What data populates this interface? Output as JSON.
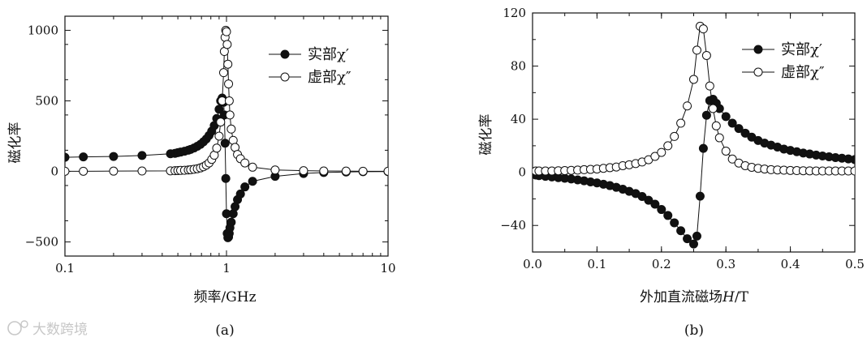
{
  "watermark": "大数跨境",
  "chart_data": [
    {
      "type": "line",
      "panel_label": "(a)",
      "xlabel": "频率/GHz",
      "ylabel": "磁化率",
      "xscale": "log",
      "xlim": [
        0.1,
        10
      ],
      "ylim": [
        -600,
        1100
      ],
      "xticks": [
        0.1,
        1,
        10
      ],
      "xtick_labels": [
        "0.1",
        "1",
        "10"
      ],
      "yticks": [
        -500,
        0,
        500,
        1000
      ],
      "ytick_labels": [
        "−500",
        "0",
        "500",
        "1000"
      ],
      "legend_position": "top-right",
      "series": [
        {
          "name": "实部χ′",
          "marker": "filled-circle",
          "x": [
            0.1,
            0.13,
            0.2,
            0.3,
            0.45,
            0.48,
            0.5,
            0.52,
            0.55,
            0.58,
            0.6,
            0.63,
            0.66,
            0.69,
            0.72,
            0.75,
            0.78,
            0.81,
            0.84,
            0.87,
            0.9,
            0.92,
            0.94,
            0.96,
            0.97,
            0.98,
            0.99,
            1.0,
            1.01,
            1.02,
            1.03,
            1.04,
            1.05,
            1.07,
            1.1,
            1.13,
            1.17,
            1.22,
            1.3,
            1.45,
            2,
            3,
            4,
            5.5,
            7,
            10
          ],
          "y": [
            100,
            103,
            106,
            113,
            125,
            128,
            133,
            137,
            143,
            150,
            156,
            166,
            178,
            192,
            210,
            230,
            255,
            285,
            325,
            375,
            440,
            500,
            520,
            490,
            400,
            200,
            -50,
            -300,
            -440,
            -470,
            -465,
            -440,
            -400,
            -360,
            -300,
            -250,
            -200,
            -160,
            -110,
            -70,
            -35,
            -15,
            -8,
            -4,
            -2,
            -1
          ]
        },
        {
          "name": "虚部χ″",
          "marker": "open-circle",
          "x": [
            0.1,
            0.13,
            0.2,
            0.3,
            0.45,
            0.48,
            0.5,
            0.52,
            0.55,
            0.58,
            0.6,
            0.63,
            0.66,
            0.69,
            0.72,
            0.75,
            0.78,
            0.81,
            0.84,
            0.87,
            0.9,
            0.92,
            0.94,
            0.96,
            0.97,
            0.98,
            0.99,
            1.0,
            1.01,
            1.02,
            1.03,
            1.04,
            1.05,
            1.07,
            1.1,
            1.13,
            1.17,
            1.22,
            1.3,
            1.45,
            2,
            3,
            4,
            5.5,
            7,
            10
          ],
          "y": [
            1,
            1,
            2,
            3,
            4,
            5,
            6,
            7,
            8,
            10,
            12,
            15,
            19,
            25,
            33,
            45,
            60,
            85,
            115,
            165,
            250,
            350,
            500,
            700,
            850,
            950,
            1000,
            990,
            900,
            760,
            620,
            500,
            400,
            300,
            220,
            170,
            120,
            90,
            60,
            30,
            10,
            5,
            3,
            2,
            1,
            1
          ]
        }
      ]
    },
    {
      "type": "line",
      "panel_label": "(b)",
      "xlabel_text": "外加直流磁场",
      "xlabel_var": "H",
      "xlabel_unit": "/T",
      "ylabel": "磁化率",
      "xlim": [
        0.0,
        0.5
      ],
      "ylim": [
        -60,
        120
      ],
      "xticks": [
        0.0,
        0.1,
        0.2,
        0.3,
        0.4,
        0.5
      ],
      "xtick_labels": [
        "0.0",
        "0.1",
        "0.2",
        "0.3",
        "0.4",
        "0.5"
      ],
      "yticks": [
        -40,
        0,
        40,
        80,
        120
      ],
      "ytick_labels": [
        "−40",
        "0",
        "40",
        "80",
        "120"
      ],
      "legend_position": "top-right",
      "series": [
        {
          "name": "实部χ′",
          "marker": "filled-circle",
          "x": [
            0.005,
            0.01,
            0.02,
            0.03,
            0.04,
            0.05,
            0.06,
            0.07,
            0.08,
            0.09,
            0.1,
            0.11,
            0.12,
            0.13,
            0.14,
            0.15,
            0.16,
            0.17,
            0.18,
            0.19,
            0.2,
            0.21,
            0.22,
            0.23,
            0.24,
            0.25,
            0.255,
            0.26,
            0.265,
            0.27,
            0.275,
            0.28,
            0.285,
            0.29,
            0.3,
            0.31,
            0.32,
            0.33,
            0.34,
            0.35,
            0.36,
            0.37,
            0.38,
            0.39,
            0.4,
            0.41,
            0.42,
            0.43,
            0.44,
            0.45,
            0.46,
            0.47,
            0.48,
            0.49,
            0.5
          ],
          "y": [
            -2,
            -2.5,
            -3,
            -3.5,
            -4,
            -4.5,
            -5,
            -5.7,
            -6.4,
            -7.2,
            -8,
            -9,
            -10,
            -11.3,
            -12.7,
            -14.3,
            -16,
            -18.2,
            -21,
            -24,
            -28,
            -32.5,
            -38,
            -44,
            -50,
            -54,
            -48,
            -18,
            18,
            43,
            54,
            55,
            52,
            48,
            42,
            37,
            33,
            29.5,
            26.5,
            24,
            22,
            20.5,
            19,
            17.5,
            16.5,
            15.5,
            14.5,
            13.8,
            13,
            12.3,
            11.7,
            11.1,
            10.6,
            10.1,
            9.6
          ]
        },
        {
          "name": "虚部χ″",
          "marker": "open-circle",
          "x": [
            0.005,
            0.01,
            0.02,
            0.03,
            0.04,
            0.05,
            0.06,
            0.07,
            0.08,
            0.09,
            0.1,
            0.11,
            0.12,
            0.13,
            0.14,
            0.15,
            0.16,
            0.17,
            0.18,
            0.19,
            0.2,
            0.21,
            0.22,
            0.23,
            0.24,
            0.25,
            0.255,
            0.26,
            0.265,
            0.27,
            0.275,
            0.28,
            0.285,
            0.29,
            0.3,
            0.31,
            0.32,
            0.33,
            0.34,
            0.35,
            0.36,
            0.37,
            0.38,
            0.39,
            0.4,
            0.41,
            0.42,
            0.43,
            0.44,
            0.45,
            0.46,
            0.47,
            0.48,
            0.49,
            0.5
          ],
          "y": [
            1,
            1,
            1,
            1,
            1.2,
            1.3,
            1.5,
            1.7,
            2,
            2.2,
            2.5,
            3,
            3.5,
            4,
            5,
            5.7,
            6.6,
            7.8,
            9.5,
            12,
            15,
            20,
            27,
            37,
            50,
            70,
            92,
            110,
            108,
            88,
            65,
            48,
            35,
            26,
            16,
            10,
            7,
            5,
            3.8,
            3,
            2.5,
            2,
            1.8,
            1.6,
            1.4,
            1.3,
            1.2,
            1.1,
            1,
            1,
            1,
            1,
            1,
            1,
            1
          ]
        }
      ]
    }
  ]
}
